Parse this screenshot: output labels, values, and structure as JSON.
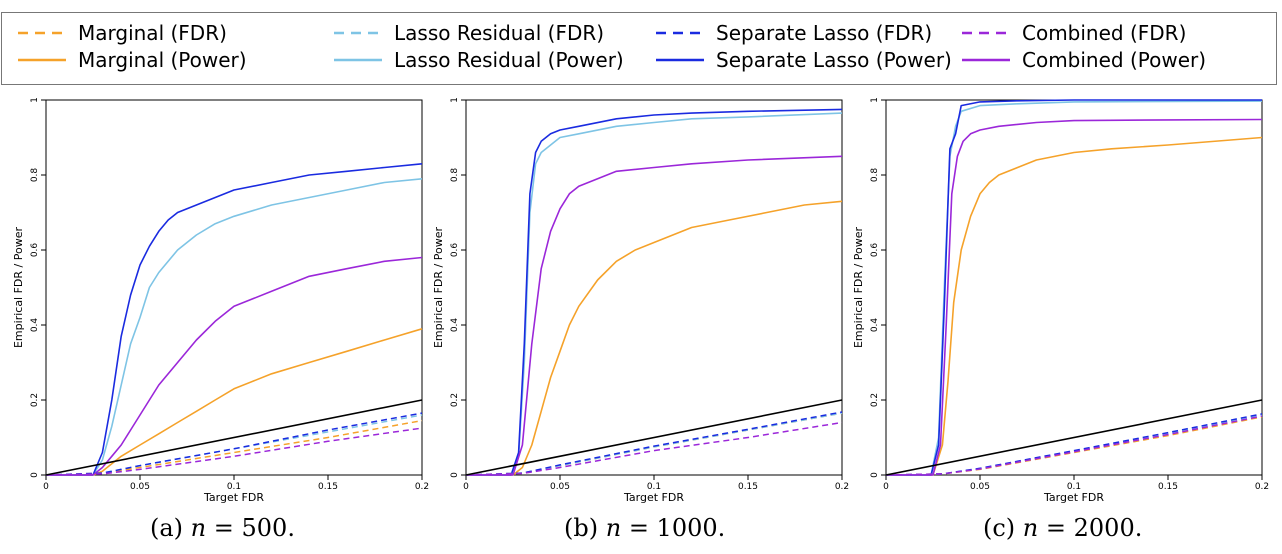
{
  "legend": [
    {
      "label": "Marginal (FDR)",
      "color": "#F5A22A",
      "dash": true
    },
    {
      "label": "Marginal (Power)",
      "color": "#F5A22A",
      "dash": false
    },
    {
      "label": "Lasso Residual (FDR)",
      "color": "#7EC4E5",
      "dash": true
    },
    {
      "label": "Lasso Residual (Power)",
      "color": "#7EC4E5",
      "dash": false
    },
    {
      "label": "Separate Lasso (FDR)",
      "color": "#1A2BE0",
      "dash": true
    },
    {
      "label": "Separate Lasso (Power)",
      "color": "#1A2BE0",
      "dash": false
    },
    {
      "label": "Combined (FDR)",
      "color": "#9B27D9",
      "dash": true
    },
    {
      "label": "Combined (Power)",
      "color": "#9B27D9",
      "dash": false
    }
  ],
  "captions": [
    {
      "prefix": "(a) ",
      "math": "n",
      "rest": " = 500."
    },
    {
      "prefix": "(b) ",
      "math": "n",
      "rest": " = 1000."
    },
    {
      "prefix": "(c) ",
      "math": "n",
      "rest": " = 2000."
    }
  ],
  "chart_data": [
    {
      "type": "line",
      "xlabel": "Target FDR",
      "ylabel": "Empirical FDR / Power",
      "xlim": [
        0,
        0.2
      ],
      "ylim": [
        0,
        1
      ],
      "xticks": [
        0,
        0.05,
        0.1,
        0.15,
        0.2
      ],
      "xtick_labels": [
        "0",
        "0.05",
        "0.1",
        "0.15",
        "0.2"
      ],
      "yticks": [
        0,
        0.2,
        0.4,
        0.6,
        0.8,
        1
      ],
      "ytick_labels": [
        "0",
        "0.2",
        "0.4",
        "0.6",
        "0.8",
        "1"
      ],
      "series": [
        {
          "name": "Marginal (Power)",
          "color": "#F5A22A",
          "dash": false,
          "x": [
            0,
            0.025,
            0.03,
            0.035,
            0.04,
            0.05,
            0.06,
            0.07,
            0.08,
            0.09,
            0.1,
            0.12,
            0.14,
            0.16,
            0.18,
            0.2
          ],
          "y": [
            0,
            0,
            0.01,
            0.03,
            0.05,
            0.08,
            0.11,
            0.14,
            0.17,
            0.2,
            0.23,
            0.27,
            0.3,
            0.33,
            0.36,
            0.39
          ]
        },
        {
          "name": "Lasso Residual (Power)",
          "color": "#7EC4E5",
          "dash": false,
          "x": [
            0,
            0.025,
            0.03,
            0.035,
            0.04,
            0.045,
            0.05,
            0.055,
            0.06,
            0.07,
            0.08,
            0.09,
            0.1,
            0.12,
            0.14,
            0.16,
            0.18,
            0.2
          ],
          "y": [
            0,
            0,
            0.04,
            0.13,
            0.24,
            0.35,
            0.42,
            0.5,
            0.54,
            0.6,
            0.64,
            0.67,
            0.69,
            0.72,
            0.74,
            0.76,
            0.78,
            0.79
          ]
        },
        {
          "name": "Separate Lasso (Power)",
          "color": "#1A2BE0",
          "dash": false,
          "x": [
            0,
            0.025,
            0.03,
            0.035,
            0.04,
            0.045,
            0.05,
            0.055,
            0.06,
            0.065,
            0.07,
            0.08,
            0.09,
            0.1,
            0.12,
            0.14,
            0.16,
            0.18,
            0.2
          ],
          "y": [
            0,
            0,
            0.06,
            0.2,
            0.37,
            0.48,
            0.56,
            0.61,
            0.65,
            0.68,
            0.7,
            0.72,
            0.74,
            0.76,
            0.78,
            0.8,
            0.81,
            0.82,
            0.83
          ]
        },
        {
          "name": "Combined (Power)",
          "color": "#9B27D9",
          "dash": false,
          "x": [
            0,
            0.025,
            0.03,
            0.035,
            0.04,
            0.045,
            0.05,
            0.055,
            0.06,
            0.07,
            0.08,
            0.09,
            0.1,
            0.12,
            0.14,
            0.16,
            0.18,
            0.2
          ],
          "y": [
            0,
            0,
            0.02,
            0.05,
            0.08,
            0.12,
            0.16,
            0.2,
            0.24,
            0.3,
            0.36,
            0.41,
            0.45,
            0.49,
            0.53,
            0.55,
            0.57,
            0.58
          ]
        },
        {
          "name": "Marginal (FDR)",
          "color": "#F5A22A",
          "dash": true,
          "x": [
            0,
            0.03,
            0.05,
            0.1,
            0.15,
            0.2
          ],
          "y": [
            0,
            0.005,
            0.02,
            0.06,
            0.1,
            0.145
          ]
        },
        {
          "name": "Lasso Residual (FDR)",
          "color": "#7EC4E5",
          "dash": true,
          "x": [
            0,
            0.03,
            0.05,
            0.1,
            0.15,
            0.2
          ],
          "y": [
            0,
            0.005,
            0.025,
            0.07,
            0.115,
            0.16
          ]
        },
        {
          "name": "Separate Lasso (FDR)",
          "color": "#1A2BE0",
          "dash": true,
          "x": [
            0,
            0.03,
            0.05,
            0.1,
            0.15,
            0.2
          ],
          "y": [
            0,
            0.005,
            0.025,
            0.07,
            0.12,
            0.165
          ]
        },
        {
          "name": "Combined (FDR)",
          "color": "#9B27D9",
          "dash": true,
          "x": [
            0,
            0.03,
            0.05,
            0.1,
            0.15,
            0.2
          ],
          "y": [
            0,
            0.003,
            0.015,
            0.05,
            0.09,
            0.125
          ]
        },
        {
          "name": "",
          "color": "#000000",
          "dash": false,
          "x": [
            0,
            0.2
          ],
          "y": [
            0,
            0.2
          ]
        }
      ]
    },
    {
      "type": "line",
      "xlabel": "Target FDR",
      "ylabel": "Empirical FDR / Power",
      "xlim": [
        0,
        0.2
      ],
      "ylim": [
        0,
        1
      ],
      "xticks": [
        0,
        0.05,
        0.1,
        0.15,
        0.2
      ],
      "xtick_labels": [
        "0",
        "0.05",
        "0.1",
        "0.15",
        "0.2"
      ],
      "yticks": [
        0,
        0.2,
        0.4,
        0.6,
        0.8,
        1
      ],
      "ytick_labels": [
        "0",
        "0.2",
        "0.4",
        "0.6",
        "0.8",
        "1"
      ],
      "series": [
        {
          "name": "Marginal (Power)",
          "color": "#F5A22A",
          "dash": false,
          "x": [
            0,
            0.025,
            0.03,
            0.035,
            0.04,
            0.045,
            0.05,
            0.055,
            0.06,
            0.07,
            0.08,
            0.09,
            0.1,
            0.12,
            0.14,
            0.16,
            0.18,
            0.2
          ],
          "y": [
            0,
            0,
            0.02,
            0.08,
            0.17,
            0.26,
            0.33,
            0.4,
            0.45,
            0.52,
            0.57,
            0.6,
            0.62,
            0.66,
            0.68,
            0.7,
            0.72,
            0.73
          ]
        },
        {
          "name": "Lasso Residual (Power)",
          "color": "#7EC4E5",
          "dash": false,
          "x": [
            0,
            0.024,
            0.028,
            0.031,
            0.034,
            0.037,
            0.04,
            0.045,
            0.05,
            0.06,
            0.08,
            0.1,
            0.12,
            0.15,
            0.2
          ],
          "y": [
            0,
            0,
            0.05,
            0.3,
            0.7,
            0.83,
            0.86,
            0.88,
            0.9,
            0.91,
            0.93,
            0.94,
            0.95,
            0.955,
            0.965
          ]
        },
        {
          "name": "Separate Lasso (Power)",
          "color": "#1A2BE0",
          "dash": false,
          "x": [
            0,
            0.024,
            0.028,
            0.031,
            0.034,
            0.037,
            0.04,
            0.045,
            0.05,
            0.06,
            0.08,
            0.1,
            0.12,
            0.15,
            0.2
          ],
          "y": [
            0,
            0,
            0.06,
            0.35,
            0.75,
            0.86,
            0.89,
            0.91,
            0.92,
            0.93,
            0.95,
            0.96,
            0.965,
            0.97,
            0.975
          ]
        },
        {
          "name": "Combined (Power)",
          "color": "#9B27D9",
          "dash": false,
          "x": [
            0,
            0.025,
            0.03,
            0.035,
            0.04,
            0.045,
            0.05,
            0.055,
            0.06,
            0.07,
            0.08,
            0.1,
            0.12,
            0.15,
            0.2
          ],
          "y": [
            0,
            0,
            0.08,
            0.35,
            0.55,
            0.65,
            0.71,
            0.75,
            0.77,
            0.79,
            0.81,
            0.82,
            0.83,
            0.84,
            0.85
          ]
        },
        {
          "name": "Marginal (FDR)",
          "color": "#F5A22A",
          "dash": true,
          "x": [
            0,
            0.03,
            0.05,
            0.1,
            0.15,
            0.2
          ],
          "y": [
            0,
            0.005,
            0.025,
            0.075,
            0.12,
            0.165
          ]
        },
        {
          "name": "Lasso Residual (FDR)",
          "color": "#7EC4E5",
          "dash": true,
          "x": [
            0,
            0.03,
            0.05,
            0.1,
            0.15,
            0.2
          ],
          "y": [
            0,
            0.005,
            0.025,
            0.075,
            0.12,
            0.165
          ]
        },
        {
          "name": "Separate Lasso (FDR)",
          "color": "#1A2BE0",
          "dash": true,
          "x": [
            0,
            0.03,
            0.05,
            0.1,
            0.15,
            0.2
          ],
          "y": [
            0,
            0.005,
            0.027,
            0.077,
            0.122,
            0.168
          ]
        },
        {
          "name": "Combined (FDR)",
          "color": "#9B27D9",
          "dash": true,
          "x": [
            0,
            0.03,
            0.05,
            0.1,
            0.15,
            0.2
          ],
          "y": [
            0,
            0.004,
            0.02,
            0.065,
            0.1,
            0.14
          ]
        },
        {
          "name": "",
          "color": "#000000",
          "dash": false,
          "x": [
            0,
            0.2
          ],
          "y": [
            0,
            0.2
          ]
        }
      ]
    },
    {
      "type": "line",
      "xlabel": "Target FDR",
      "ylabel": "Empirical FDR / Power",
      "xlim": [
        0,
        0.2
      ],
      "ylim": [
        0,
        1
      ],
      "xticks": [
        0,
        0.05,
        0.1,
        0.15,
        0.2
      ],
      "xtick_labels": [
        "0",
        "0.05",
        "0.1",
        "0.15",
        "0.2"
      ],
      "yticks": [
        0,
        0.2,
        0.4,
        0.6,
        0.8,
        1
      ],
      "ytick_labels": [
        "0",
        "0.2",
        "0.4",
        "0.6",
        "0.8",
        "1"
      ],
      "series": [
        {
          "name": "Marginal (Power)",
          "color": "#F5A22A",
          "dash": false,
          "x": [
            0,
            0.025,
            0.03,
            0.033,
            0.036,
            0.04,
            0.045,
            0.05,
            0.055,
            0.06,
            0.07,
            0.08,
            0.1,
            0.12,
            0.15,
            0.2
          ],
          "y": [
            0,
            0,
            0.08,
            0.25,
            0.46,
            0.6,
            0.69,
            0.75,
            0.78,
            0.8,
            0.82,
            0.84,
            0.86,
            0.87,
            0.88,
            0.9
          ]
        },
        {
          "name": "Lasso Residual (Power)",
          "color": "#7EC4E5",
          "dash": false,
          "x": [
            0,
            0.024,
            0.028,
            0.031,
            0.034,
            0.037,
            0.04,
            0.05,
            0.07,
            0.1,
            0.2
          ],
          "y": [
            0,
            0,
            0.1,
            0.5,
            0.85,
            0.93,
            0.97,
            0.985,
            0.99,
            0.995,
            0.997
          ]
        },
        {
          "name": "Separate Lasso (Power)",
          "color": "#1A2BE0",
          "dash": false,
          "x": [
            0,
            0.024,
            0.028,
            0.031,
            0.034,
            0.037,
            0.04,
            0.05,
            0.07,
            0.1,
            0.2
          ],
          "y": [
            0,
            0,
            0.08,
            0.45,
            0.87,
            0.91,
            0.985,
            0.995,
            0.998,
            1.0,
            1.0
          ]
        },
        {
          "name": "Combined (Power)",
          "color": "#9B27D9",
          "dash": false,
          "x": [
            0,
            0.025,
            0.029,
            0.032,
            0.035,
            0.038,
            0.041,
            0.045,
            0.05,
            0.06,
            0.08,
            0.1,
            0.15,
            0.2
          ],
          "y": [
            0,
            0,
            0.08,
            0.4,
            0.75,
            0.85,
            0.89,
            0.91,
            0.92,
            0.93,
            0.94,
            0.945,
            0.947,
            0.948
          ]
        },
        {
          "name": "Marginal (FDR)",
          "color": "#F5A22A",
          "dash": true,
          "x": [
            0,
            0.03,
            0.05,
            0.1,
            0.15,
            0.2
          ],
          "y": [
            0,
            0.003,
            0.015,
            0.06,
            0.105,
            0.155
          ]
        },
        {
          "name": "Lasso Residual (FDR)",
          "color": "#7EC4E5",
          "dash": true,
          "x": [
            0,
            0.03,
            0.05,
            0.1,
            0.15,
            0.2
          ],
          "y": [
            0,
            0.003,
            0.017,
            0.063,
            0.11,
            0.16
          ]
        },
        {
          "name": "Separate Lasso (FDR)",
          "color": "#1A2BE0",
          "dash": true,
          "x": [
            0,
            0.03,
            0.05,
            0.1,
            0.15,
            0.2
          ],
          "y": [
            0,
            0.003,
            0.018,
            0.065,
            0.113,
            0.163
          ]
        },
        {
          "name": "Combined (FDR)",
          "color": "#9B27D9",
          "dash": true,
          "x": [
            0,
            0.03,
            0.05,
            0.1,
            0.15,
            0.2
          ],
          "y": [
            0,
            0.003,
            0.016,
            0.062,
            0.108,
            0.157
          ]
        },
        {
          "name": "",
          "color": "#000000",
          "dash": false,
          "x": [
            0,
            0.2
          ],
          "y": [
            0,
            0.2
          ]
        }
      ]
    }
  ]
}
